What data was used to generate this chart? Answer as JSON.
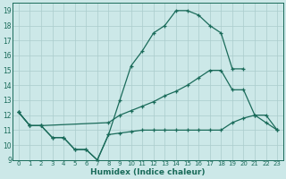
{
  "xlabel": "Humidex (Indice chaleur)",
  "background_color": "#cce8e8",
  "grid_color": "#aacccc",
  "line_color": "#1a6b5a",
  "xlim": [
    -0.5,
    23.5
  ],
  "ylim": [
    9,
    19.5
  ],
  "yticks": [
    9,
    10,
    11,
    12,
    13,
    14,
    15,
    16,
    17,
    18,
    19
  ],
  "xticks": [
    0,
    1,
    2,
    3,
    4,
    5,
    6,
    7,
    8,
    9,
    10,
    11,
    12,
    13,
    14,
    15,
    16,
    17,
    18,
    19,
    20,
    21,
    22,
    23
  ],
  "line1_x": [
    0,
    1,
    2,
    3,
    4,
    5,
    6,
    7,
    8,
    9,
    10,
    11,
    12,
    13,
    14,
    15,
    16,
    17,
    18,
    19,
    20
  ],
  "line1_y": [
    12.2,
    11.3,
    11.3,
    10.5,
    10.5,
    9.7,
    9.7,
    9.0,
    10.7,
    13.0,
    15.3,
    16.3,
    17.5,
    18.0,
    19.0,
    19.0,
    18.7,
    18.0,
    17.5,
    15.1,
    15.1
  ],
  "line2_x": [
    0,
    1,
    2,
    8,
    9,
    10,
    11,
    12,
    13,
    14,
    15,
    16,
    17,
    18,
    19,
    20,
    21,
    22,
    23
  ],
  "line2_y": [
    12.2,
    11.3,
    11.3,
    11.5,
    12.0,
    12.3,
    12.6,
    12.9,
    13.3,
    13.6,
    14.0,
    14.5,
    15.0,
    15.0,
    13.7,
    13.7,
    12.0,
    12.0,
    11.0
  ],
  "line3_x": [
    0,
    1,
    2,
    3,
    4,
    5,
    6,
    7,
    8,
    9,
    10,
    11,
    12,
    13,
    14,
    15,
    16,
    17,
    18,
    19,
    20,
    21,
    22,
    23
  ],
  "line3_y": [
    12.2,
    11.3,
    11.3,
    10.5,
    10.5,
    9.7,
    9.7,
    9.0,
    10.7,
    10.8,
    10.9,
    11.0,
    11.0,
    11.0,
    11.0,
    11.0,
    11.0,
    11.0,
    11.0,
    11.5,
    11.8,
    12.0,
    11.5,
    11.0
  ]
}
